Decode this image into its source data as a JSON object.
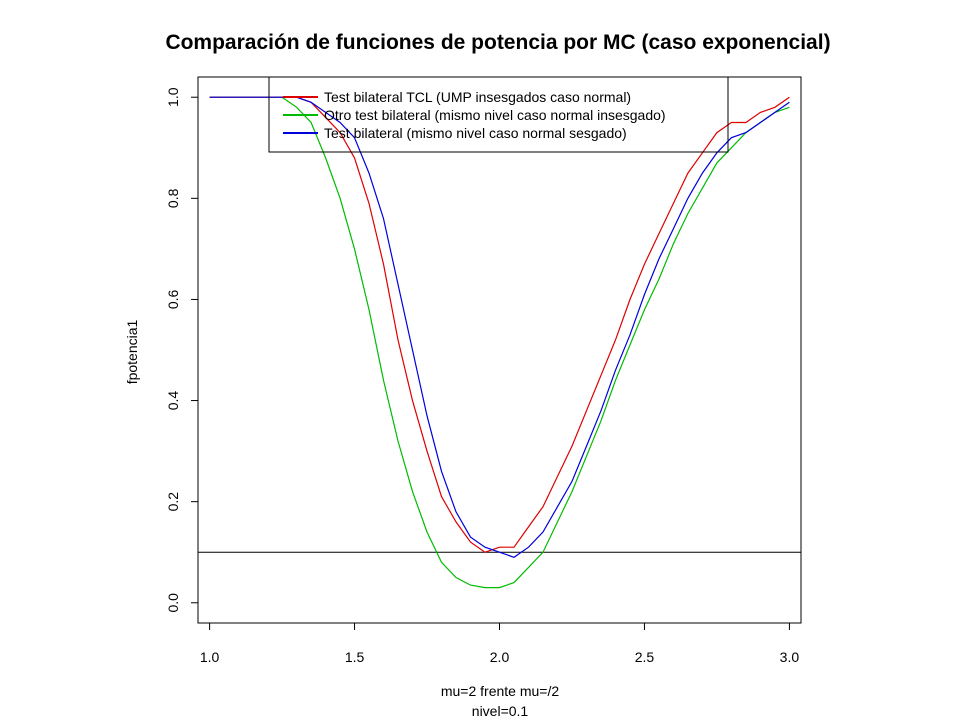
{
  "chart_data": {
    "type": "line",
    "title": "Comparación de funciones de potencia por MC (caso exponencial)",
    "xlabel": "mu=2 frente mu=/2",
    "xlabel2": "nivel=0.1",
    "ylabel": "fpotencia1",
    "xlim": [
      0.96,
      3.04
    ],
    "ylim": [
      -0.04,
      1.04
    ],
    "xticks": [
      "1.0",
      "1.5",
      "2.0",
      "2.5",
      "3.0"
    ],
    "yticks": [
      "0.0",
      "0.2",
      "0.4",
      "0.6",
      "0.8",
      "1.0"
    ],
    "grid": false,
    "legend_position": "top-center",
    "hline": 0.1,
    "x": [
      1.0,
      1.25,
      1.3,
      1.35,
      1.4,
      1.45,
      1.5,
      1.55,
      1.6,
      1.65,
      1.7,
      1.75,
      1.8,
      1.85,
      1.9,
      1.95,
      2.0,
      2.05,
      2.1,
      2.15,
      2.2,
      2.25,
      2.3,
      2.35,
      2.4,
      2.45,
      2.5,
      2.55,
      2.6,
      2.65,
      2.7,
      2.75,
      2.8,
      2.85,
      2.9,
      2.95,
      3.0
    ],
    "series": [
      {
        "name": "Test bilateral TCL (UMP insesgados caso normal)",
        "color": "#dd0000",
        "values": [
          1.0,
          1.0,
          1.0,
          0.99,
          0.96,
          0.93,
          0.88,
          0.79,
          0.67,
          0.52,
          0.4,
          0.3,
          0.21,
          0.16,
          0.12,
          0.1,
          0.11,
          0.11,
          0.15,
          0.19,
          0.25,
          0.31,
          0.38,
          0.45,
          0.52,
          0.6,
          0.67,
          0.73,
          0.79,
          0.85,
          0.89,
          0.93,
          0.95,
          0.95,
          0.97,
          0.98,
          1.0
        ]
      },
      {
        "name": "Otro test bilateral (mismo nivel caso normal insesgado)",
        "color": "#00bb00",
        "values": [
          1.0,
          1.0,
          0.98,
          0.95,
          0.88,
          0.8,
          0.7,
          0.58,
          0.44,
          0.32,
          0.22,
          0.14,
          0.08,
          0.05,
          0.035,
          0.03,
          0.03,
          0.04,
          0.07,
          0.1,
          0.16,
          0.22,
          0.29,
          0.36,
          0.44,
          0.51,
          0.58,
          0.64,
          0.71,
          0.77,
          0.82,
          0.87,
          0.9,
          0.93,
          0.95,
          0.97,
          0.98
        ]
      },
      {
        "name": "Test bilateral (mismo nivel caso normal sesgado)",
        "color": "#0000dd",
        "values": [
          1.0,
          1.0,
          1.0,
          0.99,
          0.97,
          0.95,
          0.92,
          0.85,
          0.76,
          0.63,
          0.5,
          0.37,
          0.26,
          0.18,
          0.13,
          0.11,
          0.1,
          0.09,
          0.11,
          0.14,
          0.19,
          0.24,
          0.31,
          0.38,
          0.46,
          0.53,
          0.61,
          0.68,
          0.74,
          0.8,
          0.85,
          0.89,
          0.92,
          0.93,
          0.95,
          0.97,
          0.99
        ]
      }
    ]
  }
}
